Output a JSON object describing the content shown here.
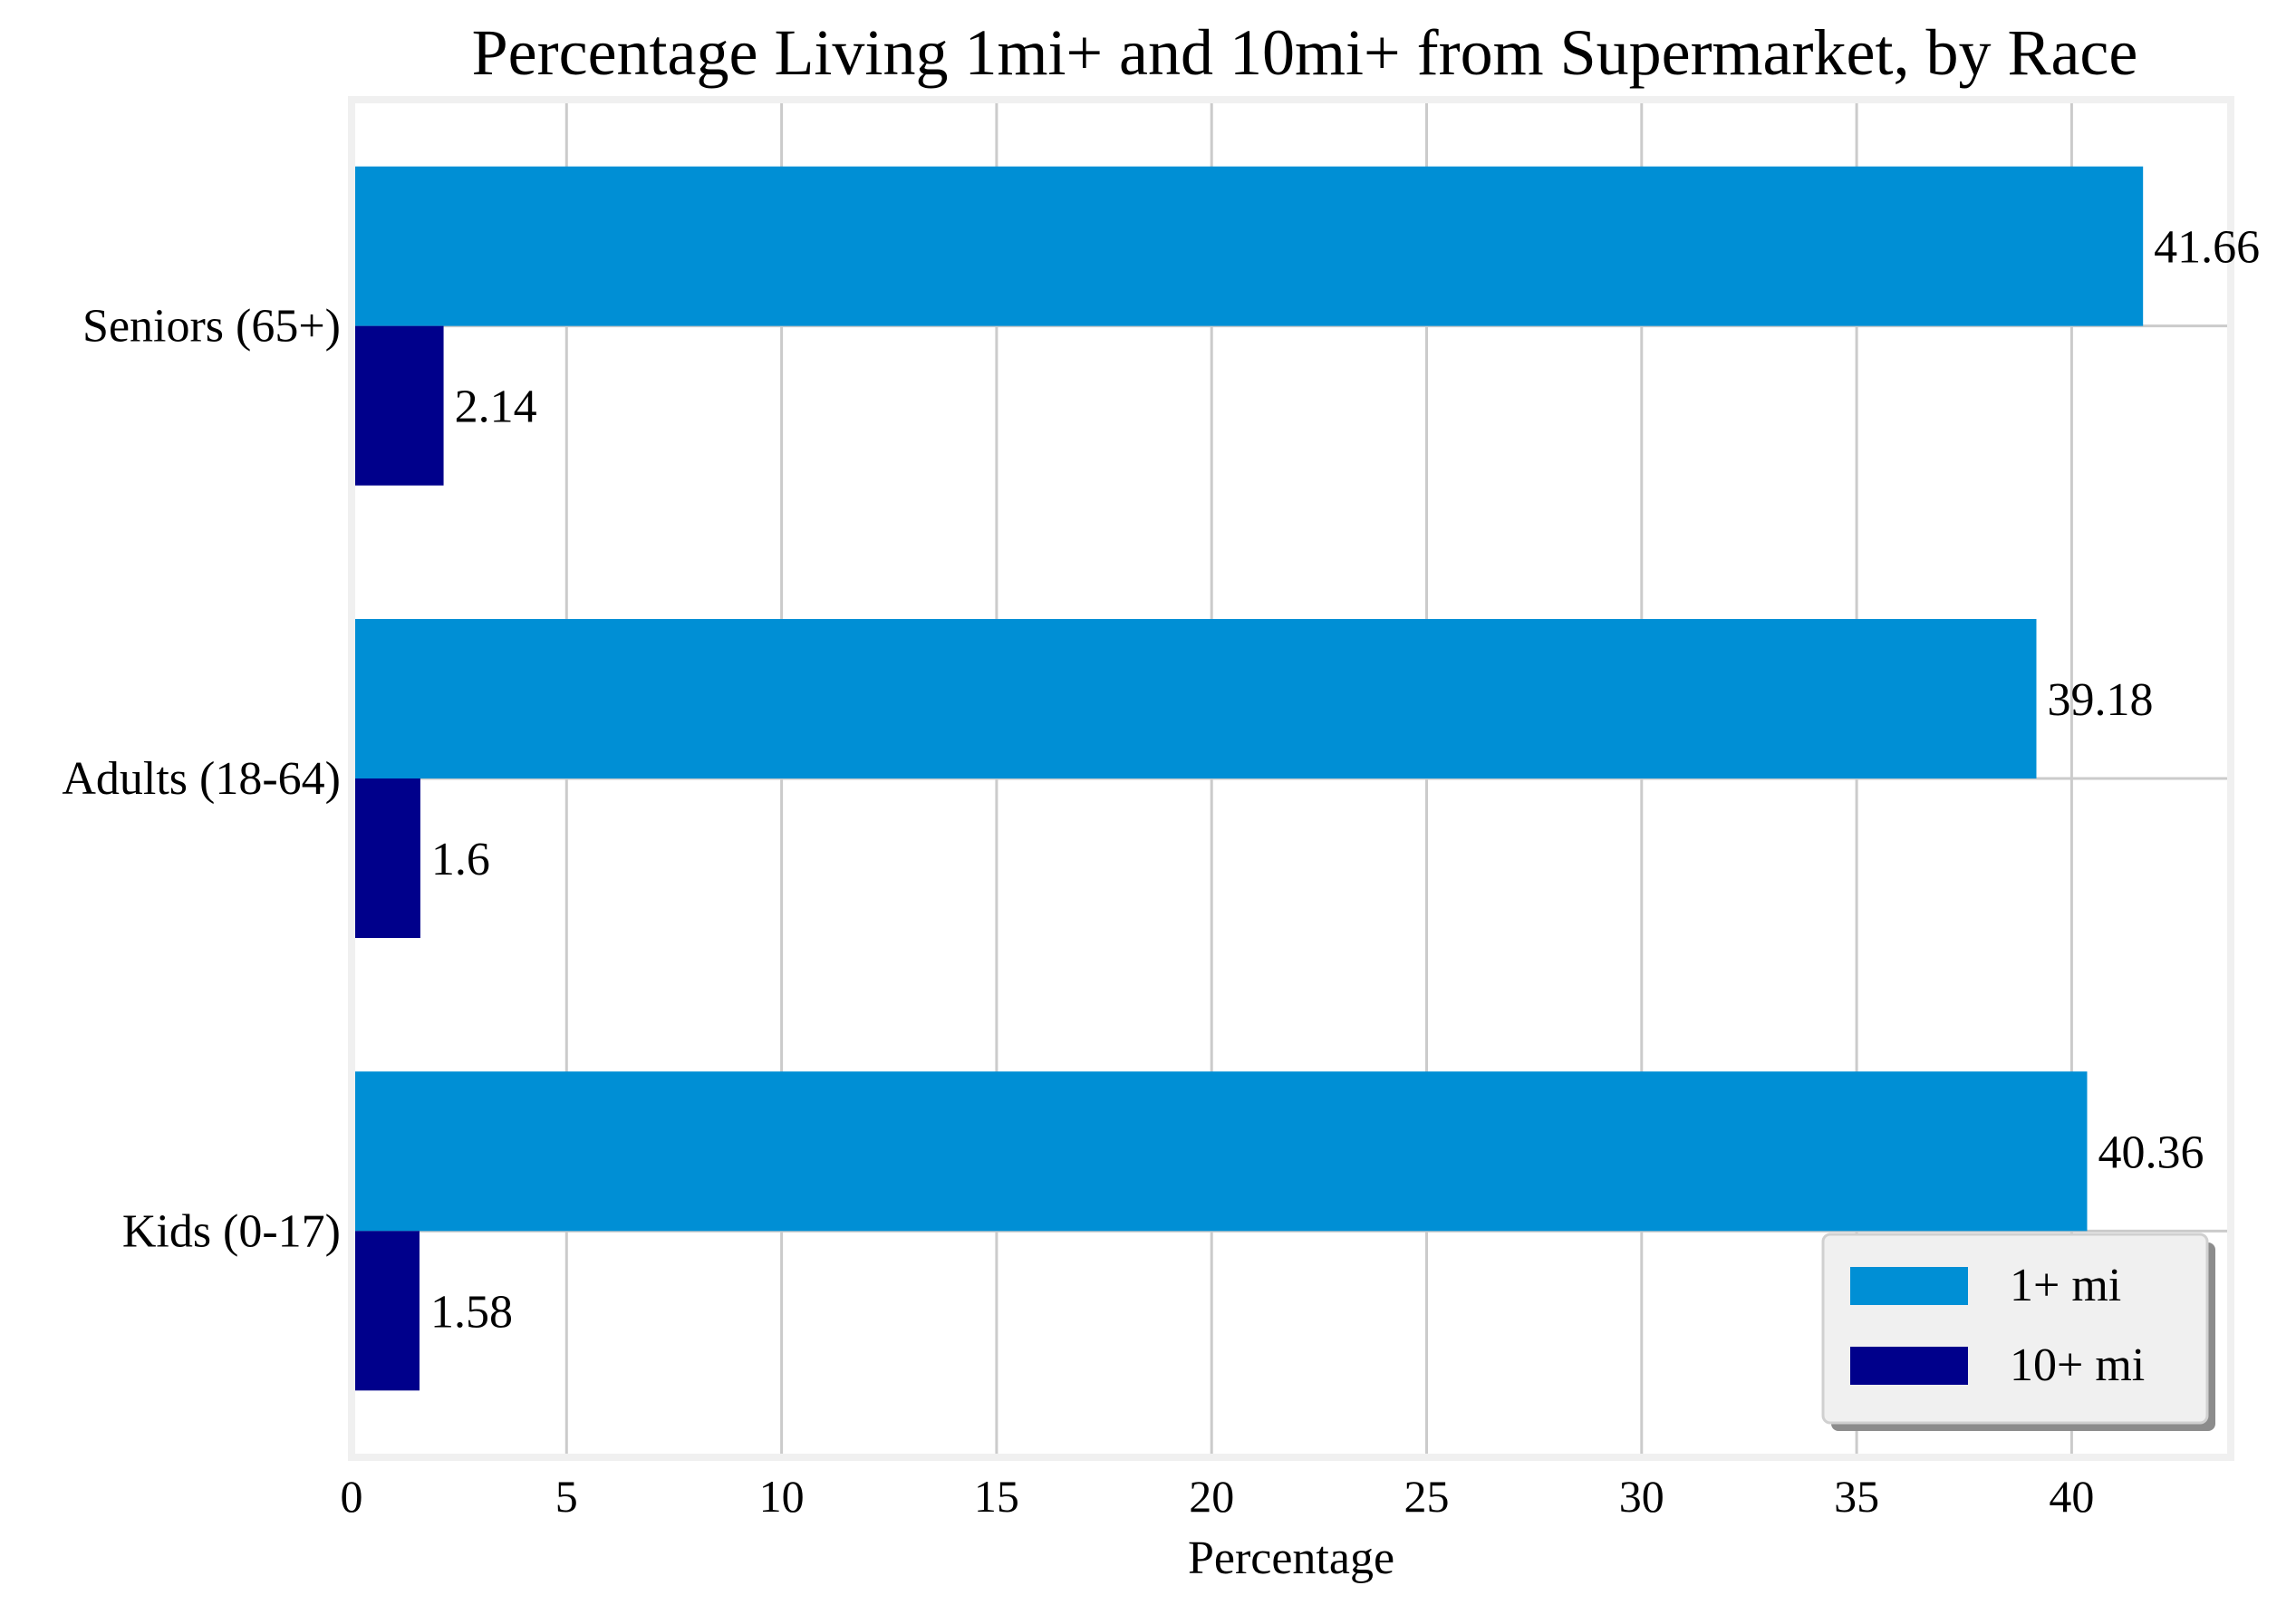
{
  "chart_data": {
    "type": "bar",
    "orientation": "horizontal",
    "title": "Percentage Living 1mi+ and 10mi+ from Supermarket, by Race",
    "xlabel": "Percentage",
    "ylabel": "",
    "xlim": [
      0,
      43.7
    ],
    "xticks": [
      0,
      5,
      10,
      15,
      20,
      25,
      30,
      35,
      40
    ],
    "grid": true,
    "legend_position": "lower-right",
    "categories": [
      "Kids (0-17)",
      "Adults (18-64)",
      "Seniors (65+)"
    ],
    "series": [
      {
        "name": "1+ mi",
        "color": "#008fd5",
        "values": [
          40.36,
          39.18,
          41.66
        ],
        "labels": [
          "40.36",
          "39.18",
          "41.66"
        ]
      },
      {
        "name": "10+ mi",
        "color": "#00008b",
        "values": [
          1.58,
          1.6,
          2.14
        ],
        "labels": [
          "1.58",
          "1.6",
          "2.14"
        ]
      }
    ]
  }
}
